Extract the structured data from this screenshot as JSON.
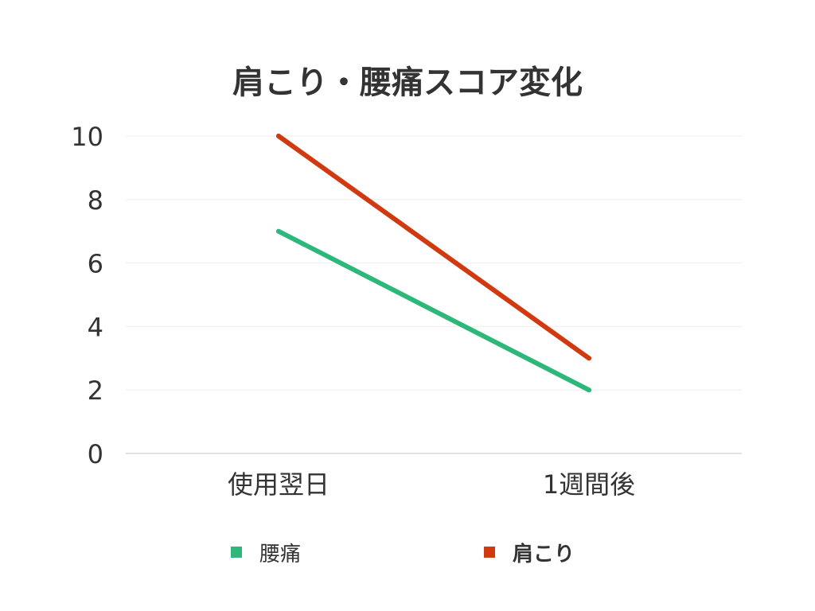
{
  "chart_data": {
    "type": "line",
    "title": "肩こり・腰痛スコア変化",
    "categories": [
      "使用翌日",
      "1週間後"
    ],
    "series": [
      {
        "name": "腰痛",
        "values": [
          7,
          2
        ],
        "color": "#2db87a"
      },
      {
        "name": "肩こり",
        "values": [
          10,
          3
        ],
        "color": "#d13a10"
      }
    ],
    "ylim": [
      0,
      10
    ],
    "yticks": [
      0,
      2,
      4,
      6,
      8,
      10
    ],
    "grid": true,
    "legend_position": "bottom"
  }
}
